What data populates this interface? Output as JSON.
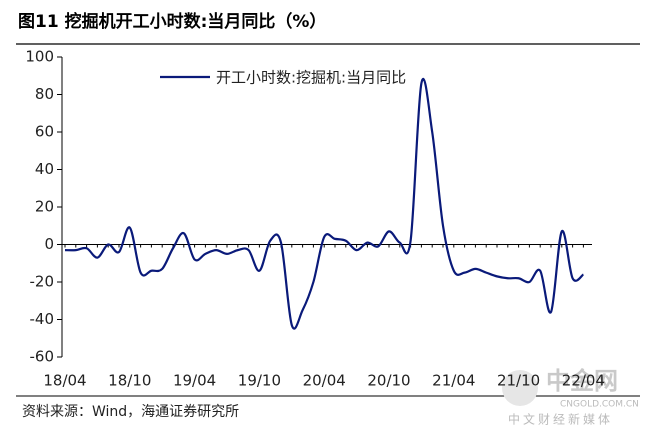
{
  "chart_data": {
    "type": "line",
    "title": "图11 挖掘机开工小时数:当月同比（%）",
    "categories": [
      "18/04",
      null,
      null,
      null,
      null,
      null,
      "18/10",
      null,
      null,
      null,
      null,
      null,
      "19/04",
      null,
      null,
      null,
      null,
      null,
      "19/10",
      null,
      null,
      null,
      null,
      null,
      "20/04",
      null,
      null,
      null,
      null,
      null,
      "20/10",
      null,
      null,
      null,
      null,
      null,
      "21/04",
      null,
      null,
      null,
      null,
      null,
      "21/10",
      null,
      null,
      null,
      null,
      null,
      "22/04"
    ],
    "series": [
      {
        "name": "开工小时数:挖掘机:当月同比",
        "color": "#0a1a7a",
        "values": [
          -3,
          -3,
          -2,
          -7,
          0,
          -4,
          9,
          -15,
          -14,
          -13,
          -2,
          6,
          -8,
          -5,
          -3,
          -5,
          -3,
          -3,
          -14,
          2,
          1,
          -43,
          -35,
          -20,
          4,
          3,
          2,
          -3,
          1,
          -1,
          7,
          1,
          2,
          86,
          60,
          10,
          -14,
          -15,
          -13,
          -15,
          -17,
          -18,
          -18,
          -20,
          -14,
          -36,
          7,
          -18,
          -16
        ]
      }
    ],
    "ylim": [
      -60,
      100
    ],
    "yticks": [
      -60,
      -40,
      -20,
      0,
      20,
      40,
      60,
      80,
      100
    ],
    "legend": "top",
    "source": "资料来源：Wind，海通证券研究所",
    "watermark": {
      "logo": "中金网",
      "site": "CNGOLD.COM.CN",
      "tagline": "中文财经新媒体"
    }
  }
}
